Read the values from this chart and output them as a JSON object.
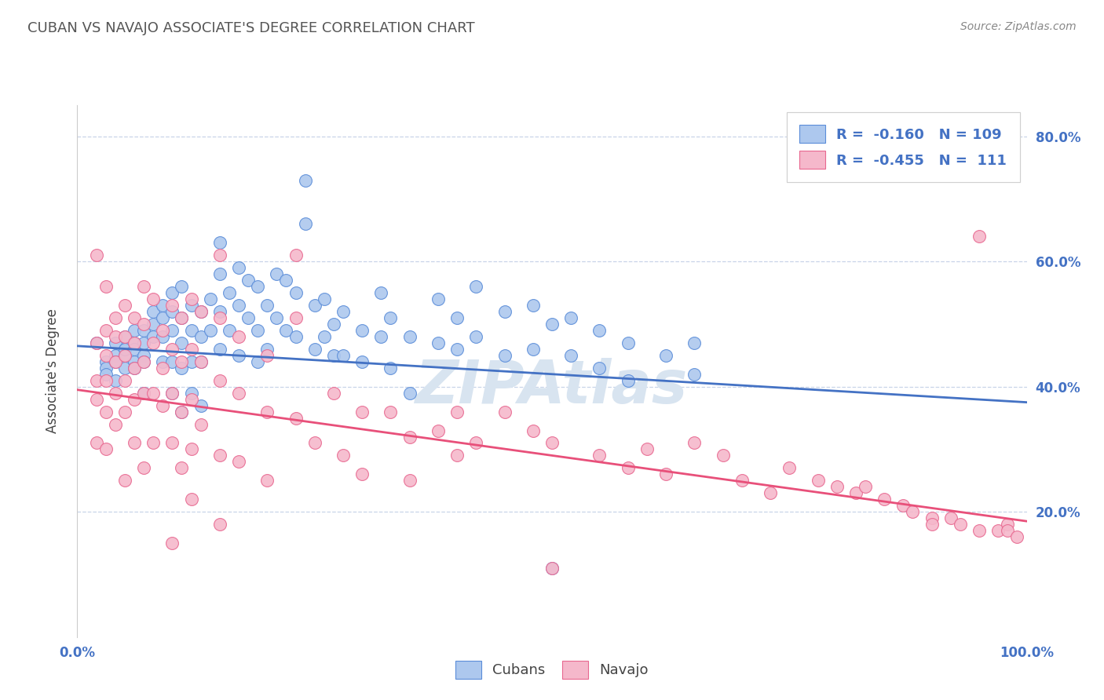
{
  "title": "CUBAN VS NAVAJO ASSOCIATE'S DEGREE CORRELATION CHART",
  "source": "Source: ZipAtlas.com",
  "ylabel": "Associate's Degree",
  "xlim": [
    0.0,
    1.0
  ],
  "ylim": [
    0.0,
    0.85
  ],
  "ytick_positions": [
    0.0,
    0.2,
    0.4,
    0.6,
    0.8
  ],
  "ytick_labels": [
    "",
    "20.0%",
    "40.0%",
    "60.0%",
    "80.0%"
  ],
  "xtick_positions": [
    0.0,
    0.1,
    0.2,
    0.3,
    0.4,
    0.5,
    0.6,
    0.7,
    0.8,
    0.9,
    1.0
  ],
  "xtick_labels": [
    "0.0%",
    "",
    "",
    "",
    "",
    "",
    "",
    "",
    "",
    "",
    "100.0%"
  ],
  "legend_line1": "R =  -0.160   N = 109",
  "legend_line2": "R =  -0.455   N =  111",
  "blue_color": "#adc8ee",
  "pink_color": "#f5b8cb",
  "blue_edge_color": "#5b8dd9",
  "pink_edge_color": "#e86890",
  "blue_line_color": "#4472c4",
  "pink_line_color": "#e8507a",
  "blue_scatter": [
    [
      0.02,
      0.47
    ],
    [
      0.03,
      0.44
    ],
    [
      0.03,
      0.43
    ],
    [
      0.03,
      0.42
    ],
    [
      0.04,
      0.47
    ],
    [
      0.04,
      0.45
    ],
    [
      0.04,
      0.44
    ],
    [
      0.04,
      0.41
    ],
    [
      0.05,
      0.48
    ],
    [
      0.05,
      0.46
    ],
    [
      0.05,
      0.45
    ],
    [
      0.05,
      0.43
    ],
    [
      0.05,
      0.46
    ],
    [
      0.06,
      0.49
    ],
    [
      0.06,
      0.47
    ],
    [
      0.06,
      0.46
    ],
    [
      0.06,
      0.44
    ],
    [
      0.06,
      0.43
    ],
    [
      0.07,
      0.49
    ],
    [
      0.07,
      0.47
    ],
    [
      0.07,
      0.45
    ],
    [
      0.07,
      0.44
    ],
    [
      0.07,
      0.39
    ],
    [
      0.08,
      0.52
    ],
    [
      0.08,
      0.5
    ],
    [
      0.08,
      0.48
    ],
    [
      0.09,
      0.53
    ],
    [
      0.09,
      0.51
    ],
    [
      0.09,
      0.48
    ],
    [
      0.09,
      0.44
    ],
    [
      0.1,
      0.55
    ],
    [
      0.1,
      0.52
    ],
    [
      0.1,
      0.49
    ],
    [
      0.1,
      0.44
    ],
    [
      0.1,
      0.39
    ],
    [
      0.11,
      0.56
    ],
    [
      0.11,
      0.51
    ],
    [
      0.11,
      0.47
    ],
    [
      0.11,
      0.43
    ],
    [
      0.11,
      0.36
    ],
    [
      0.12,
      0.53
    ],
    [
      0.12,
      0.49
    ],
    [
      0.12,
      0.44
    ],
    [
      0.12,
      0.39
    ],
    [
      0.13,
      0.52
    ],
    [
      0.13,
      0.48
    ],
    [
      0.13,
      0.44
    ],
    [
      0.13,
      0.37
    ],
    [
      0.14,
      0.54
    ],
    [
      0.14,
      0.49
    ],
    [
      0.15,
      0.63
    ],
    [
      0.15,
      0.58
    ],
    [
      0.15,
      0.52
    ],
    [
      0.15,
      0.46
    ],
    [
      0.16,
      0.55
    ],
    [
      0.16,
      0.49
    ],
    [
      0.17,
      0.59
    ],
    [
      0.17,
      0.53
    ],
    [
      0.17,
      0.45
    ],
    [
      0.18,
      0.57
    ],
    [
      0.18,
      0.51
    ],
    [
      0.19,
      0.56
    ],
    [
      0.19,
      0.49
    ],
    [
      0.19,
      0.44
    ],
    [
      0.2,
      0.53
    ],
    [
      0.2,
      0.46
    ],
    [
      0.21,
      0.58
    ],
    [
      0.21,
      0.51
    ],
    [
      0.22,
      0.57
    ],
    [
      0.22,
      0.49
    ],
    [
      0.23,
      0.55
    ],
    [
      0.23,
      0.48
    ],
    [
      0.24,
      0.73
    ],
    [
      0.24,
      0.66
    ],
    [
      0.25,
      0.53
    ],
    [
      0.25,
      0.46
    ],
    [
      0.26,
      0.54
    ],
    [
      0.26,
      0.48
    ],
    [
      0.27,
      0.5
    ],
    [
      0.27,
      0.45
    ],
    [
      0.28,
      0.52
    ],
    [
      0.28,
      0.45
    ],
    [
      0.3,
      0.49
    ],
    [
      0.3,
      0.44
    ],
    [
      0.32,
      0.55
    ],
    [
      0.32,
      0.48
    ],
    [
      0.33,
      0.51
    ],
    [
      0.33,
      0.43
    ],
    [
      0.35,
      0.48
    ],
    [
      0.35,
      0.39
    ],
    [
      0.38,
      0.54
    ],
    [
      0.38,
      0.47
    ],
    [
      0.4,
      0.51
    ],
    [
      0.4,
      0.46
    ],
    [
      0.42,
      0.56
    ],
    [
      0.42,
      0.48
    ],
    [
      0.45,
      0.52
    ],
    [
      0.45,
      0.45
    ],
    [
      0.48,
      0.53
    ],
    [
      0.48,
      0.46
    ],
    [
      0.5,
      0.5
    ],
    [
      0.5,
      0.11
    ],
    [
      0.52,
      0.51
    ],
    [
      0.52,
      0.45
    ],
    [
      0.55,
      0.49
    ],
    [
      0.55,
      0.43
    ],
    [
      0.58,
      0.47
    ],
    [
      0.58,
      0.41
    ],
    [
      0.62,
      0.45
    ],
    [
      0.65,
      0.47
    ],
    [
      0.65,
      0.42
    ]
  ],
  "pink_scatter": [
    [
      0.02,
      0.61
    ],
    [
      0.02,
      0.47
    ],
    [
      0.02,
      0.41
    ],
    [
      0.02,
      0.38
    ],
    [
      0.02,
      0.31
    ],
    [
      0.03,
      0.56
    ],
    [
      0.03,
      0.49
    ],
    [
      0.03,
      0.45
    ],
    [
      0.03,
      0.41
    ],
    [
      0.03,
      0.36
    ],
    [
      0.03,
      0.3
    ],
    [
      0.04,
      0.51
    ],
    [
      0.04,
      0.48
    ],
    [
      0.04,
      0.44
    ],
    [
      0.04,
      0.39
    ],
    [
      0.04,
      0.34
    ],
    [
      0.05,
      0.53
    ],
    [
      0.05,
      0.48
    ],
    [
      0.05,
      0.45
    ],
    [
      0.05,
      0.41
    ],
    [
      0.05,
      0.36
    ],
    [
      0.05,
      0.25
    ],
    [
      0.06,
      0.51
    ],
    [
      0.06,
      0.47
    ],
    [
      0.06,
      0.43
    ],
    [
      0.06,
      0.38
    ],
    [
      0.06,
      0.31
    ],
    [
      0.07,
      0.56
    ],
    [
      0.07,
      0.5
    ],
    [
      0.07,
      0.44
    ],
    [
      0.07,
      0.39
    ],
    [
      0.07,
      0.27
    ],
    [
      0.08,
      0.54
    ],
    [
      0.08,
      0.47
    ],
    [
      0.08,
      0.39
    ],
    [
      0.08,
      0.31
    ],
    [
      0.09,
      0.49
    ],
    [
      0.09,
      0.43
    ],
    [
      0.09,
      0.37
    ],
    [
      0.1,
      0.53
    ],
    [
      0.1,
      0.46
    ],
    [
      0.1,
      0.39
    ],
    [
      0.1,
      0.31
    ],
    [
      0.1,
      0.15
    ],
    [
      0.11,
      0.51
    ],
    [
      0.11,
      0.44
    ],
    [
      0.11,
      0.36
    ],
    [
      0.11,
      0.27
    ],
    [
      0.12,
      0.54
    ],
    [
      0.12,
      0.46
    ],
    [
      0.12,
      0.38
    ],
    [
      0.12,
      0.3
    ],
    [
      0.12,
      0.22
    ],
    [
      0.13,
      0.52
    ],
    [
      0.13,
      0.44
    ],
    [
      0.13,
      0.34
    ],
    [
      0.15,
      0.61
    ],
    [
      0.15,
      0.51
    ],
    [
      0.15,
      0.41
    ],
    [
      0.15,
      0.29
    ],
    [
      0.15,
      0.18
    ],
    [
      0.17,
      0.48
    ],
    [
      0.17,
      0.39
    ],
    [
      0.17,
      0.28
    ],
    [
      0.2,
      0.45
    ],
    [
      0.2,
      0.36
    ],
    [
      0.2,
      0.25
    ],
    [
      0.23,
      0.61
    ],
    [
      0.23,
      0.51
    ],
    [
      0.23,
      0.35
    ],
    [
      0.25,
      0.31
    ],
    [
      0.27,
      0.39
    ],
    [
      0.28,
      0.29
    ],
    [
      0.3,
      0.36
    ],
    [
      0.3,
      0.26
    ],
    [
      0.33,
      0.36
    ],
    [
      0.35,
      0.32
    ],
    [
      0.35,
      0.25
    ],
    [
      0.38,
      0.33
    ],
    [
      0.4,
      0.36
    ],
    [
      0.4,
      0.29
    ],
    [
      0.42,
      0.31
    ],
    [
      0.45,
      0.36
    ],
    [
      0.48,
      0.33
    ],
    [
      0.5,
      0.31
    ],
    [
      0.5,
      0.11
    ],
    [
      0.55,
      0.29
    ],
    [
      0.58,
      0.27
    ],
    [
      0.6,
      0.3
    ],
    [
      0.62,
      0.26
    ],
    [
      0.65,
      0.31
    ],
    [
      0.68,
      0.29
    ],
    [
      0.7,
      0.25
    ],
    [
      0.73,
      0.23
    ],
    [
      0.75,
      0.27
    ],
    [
      0.78,
      0.25
    ],
    [
      0.8,
      0.24
    ],
    [
      0.82,
      0.23
    ],
    [
      0.83,
      0.24
    ],
    [
      0.85,
      0.22
    ],
    [
      0.87,
      0.21
    ],
    [
      0.88,
      0.2
    ],
    [
      0.9,
      0.19
    ],
    [
      0.9,
      0.18
    ],
    [
      0.92,
      0.19
    ],
    [
      0.93,
      0.18
    ],
    [
      0.95,
      0.64
    ],
    [
      0.95,
      0.17
    ],
    [
      0.97,
      0.17
    ],
    [
      0.98,
      0.18
    ],
    [
      0.98,
      0.17
    ],
    [
      0.99,
      0.16
    ]
  ],
  "blue_trendline": [
    [
      0.0,
      0.465
    ],
    [
      1.0,
      0.375
    ]
  ],
  "pink_trendline": [
    [
      0.0,
      0.395
    ],
    [
      1.0,
      0.185
    ]
  ],
  "grid_color": "#c8d4e8",
  "background_color": "#ffffff",
  "title_color": "#555555",
  "axis_label_color": "#4472c4",
  "watermark": "ZIPAtlas",
  "watermark_color": "#d8e4f0"
}
